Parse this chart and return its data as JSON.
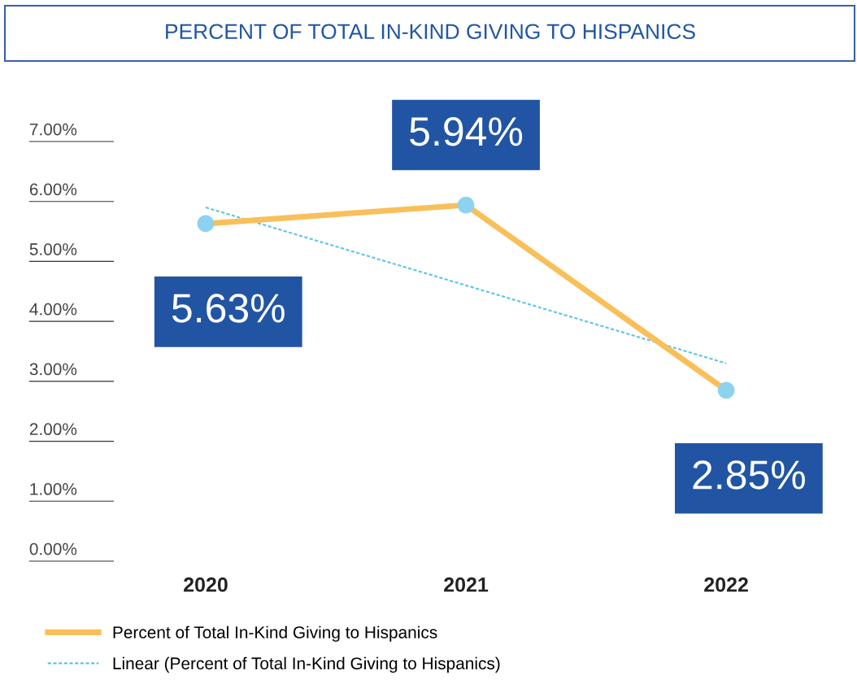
{
  "chart_data": {
    "type": "line",
    "title": "PERCENT OF TOTAL IN-KIND GIVING TO HISPANICS",
    "categories": [
      "2020",
      "2021",
      "2022"
    ],
    "series": [
      {
        "name": "Percent of Total In-Kind Giving to Hispanics",
        "color": "#f9bf5a",
        "values": [
          5.63,
          5.94,
          2.85
        ],
        "value_labels": [
          "5.63%",
          "5.94%",
          "2.85%"
        ],
        "marker": "circle",
        "line_style": "solid"
      },
      {
        "name": "Linear (Percent of Total In-Kind Giving to Hispanics)",
        "color": "#5bc4e6",
        "values": [
          5.9,
          4.6,
          3.3
        ],
        "marker": "none",
        "line_style": "dashed"
      }
    ],
    "ylim": [
      0,
      7
    ],
    "yticks": [
      {
        "value": 0,
        "label": "0.00%"
      },
      {
        "value": 1,
        "label": "1.00%"
      },
      {
        "value": 2,
        "label": "2.00%"
      },
      {
        "value": 3,
        "label": "3.00%"
      },
      {
        "value": 4,
        "label": "4.00%"
      },
      {
        "value": 5,
        "label": "5.00%"
      },
      {
        "value": 6,
        "label": "6.00%"
      },
      {
        "value": 7,
        "label": "7.00%"
      }
    ],
    "grid": false,
    "legend": "bottom left"
  }
}
